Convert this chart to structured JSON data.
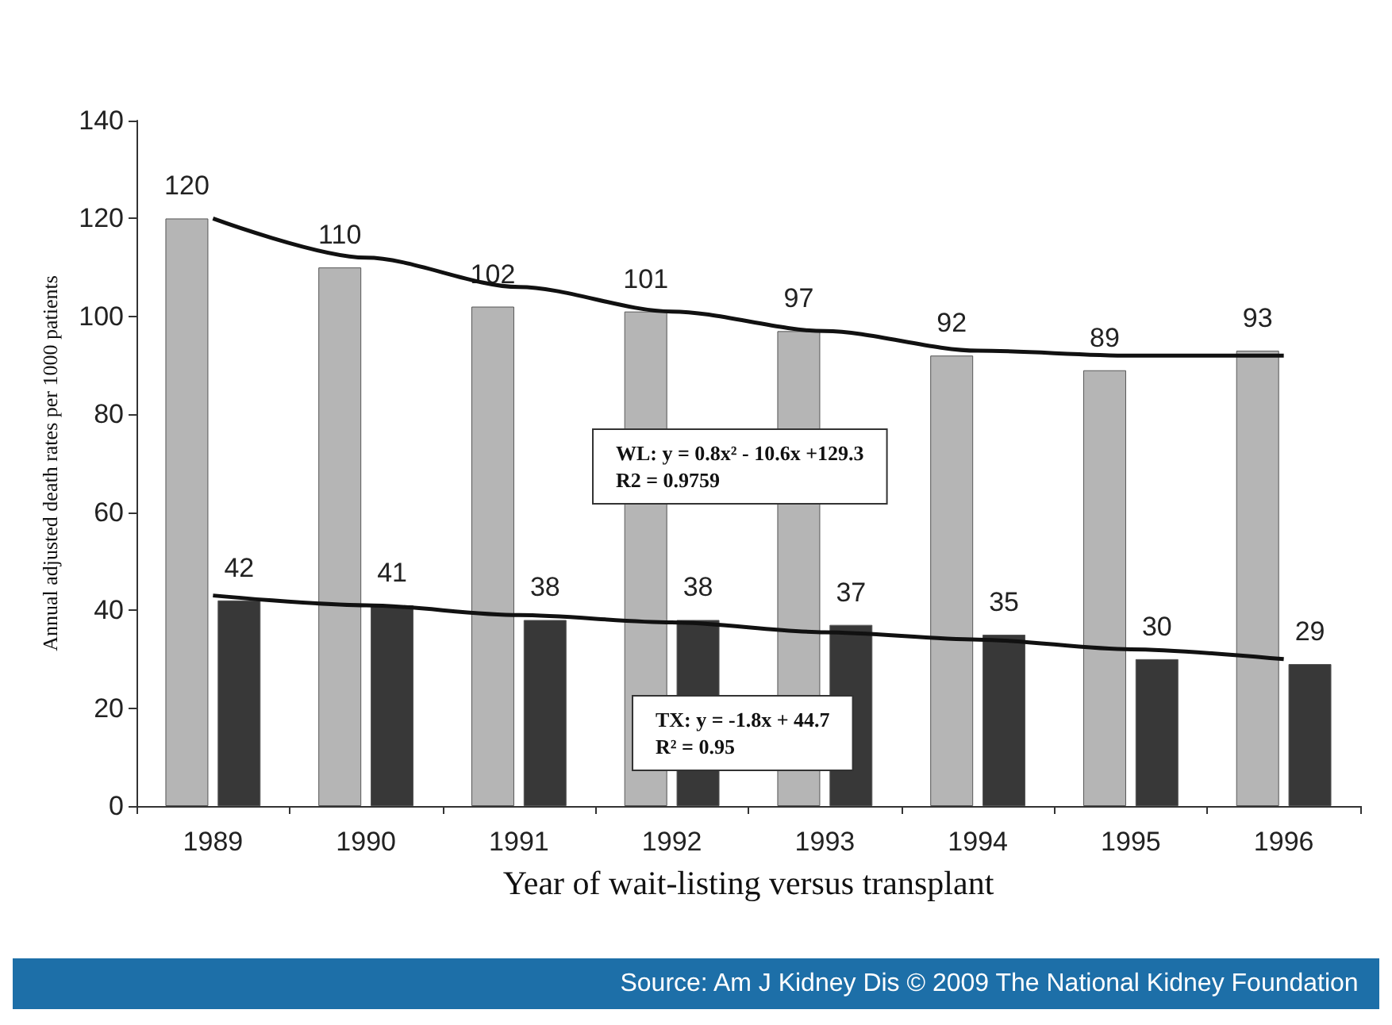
{
  "chart_data": {
    "type": "bar",
    "xlabel": "Year of wait-listing versus transplant",
    "ylabel": "Annual adjusted death rates per 1000 patients",
    "categories": [
      "1989",
      "1990",
      "1991",
      "1992",
      "1993",
      "1994",
      "1995",
      "1996"
    ],
    "series": [
      {
        "color": "#b5b5b5",
        "values": [
          120,
          110,
          102,
          101,
          97,
          92,
          89,
          93
        ],
        "value_labels": [
          "120",
          "110",
          "102",
          "101",
          "97",
          "92",
          "89",
          "93"
        ]
      },
      {
        "color": "#383838",
        "values": [
          42,
          41,
          38,
          38,
          37,
          35,
          30,
          29
        ],
        "value_labels": [
          "42",
          "41",
          "38",
          "38",
          "37",
          "35",
          "30",
          "29"
        ]
      },
      {
        "type": "line",
        "color": "#111111",
        "values": [
          120,
          112,
          106,
          101,
          97,
          93,
          92,
          92
        ]
      },
      {
        "type": "line",
        "color": "#111111",
        "values": [
          43,
          41,
          39,
          37.5,
          35.5,
          34,
          32,
          30
        ]
      }
    ],
    "ylim": [
      0,
      140
    ],
    "yticks": [
      0,
      20,
      40,
      60,
      80,
      100,
      120,
      140
    ],
    "grid": false,
    "marker": "none",
    "annotations": [
      "WL: y = 0.8x² - 10.6x +129.3\nR2 = 0.9759",
      "TX: y = -1.8x + 44.7\nR² = 0.95",
      "Source: Am J Kidney Dis © 2009 The National Kidney Foundation"
    ]
  }
}
